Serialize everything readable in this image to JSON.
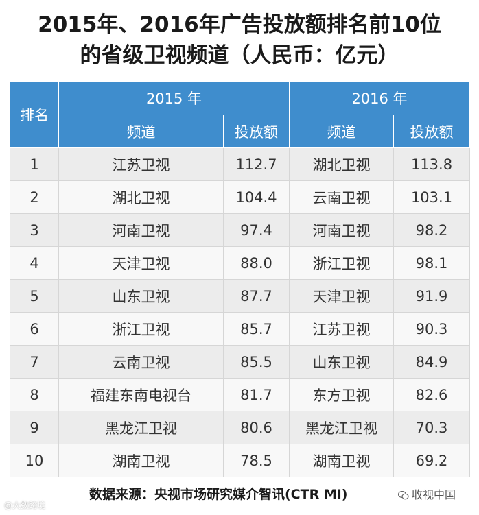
{
  "title": {
    "line1": "2015年、2016年广告投放额排名前10位",
    "line2": "的省级卫视频道（人民币：亿元）"
  },
  "chart_data": {
    "type": "table",
    "rank_header": "排名",
    "year_headers": [
      "2015 年",
      "2016 年"
    ],
    "column_headers": [
      "频道",
      "投放额",
      "频道",
      "投放额"
    ],
    "rows": [
      {
        "rank": "1",
        "ch2015": "江苏卫视",
        "amt2015": "112.7",
        "ch2016": "湖北卫视",
        "amt2016": "113.8"
      },
      {
        "rank": "2",
        "ch2015": "湖北卫视",
        "amt2015": "104.4",
        "ch2016": "云南卫视",
        "amt2016": "103.1"
      },
      {
        "rank": "3",
        "ch2015": "河南卫视",
        "amt2015": "97.4",
        "ch2016": "河南卫视",
        "amt2016": "98.2"
      },
      {
        "rank": "4",
        "ch2015": "天津卫视",
        "amt2015": "88.0",
        "ch2016": "浙江卫视",
        "amt2016": "98.1"
      },
      {
        "rank": "5",
        "ch2015": "山东卫视",
        "amt2015": "87.7",
        "ch2016": "天津卫视",
        "amt2016": "91.9"
      },
      {
        "rank": "6",
        "ch2015": "浙江卫视",
        "amt2015": "85.7",
        "ch2016": "江苏卫视",
        "amt2016": "90.3"
      },
      {
        "rank": "7",
        "ch2015": "云南卫视",
        "amt2015": "85.5",
        "ch2016": "山东卫视",
        "amt2016": "84.9"
      },
      {
        "rank": "8",
        "ch2015": "福建东南电视台",
        "amt2015": "81.7",
        "ch2016": "东方卫视",
        "amt2016": "82.6"
      },
      {
        "rank": "9",
        "ch2015": "黑龙江卫视",
        "amt2015": "80.6",
        "ch2016": "黑龙江卫视",
        "amt2016": "70.3"
      },
      {
        "rank": "10",
        "ch2015": "湖南卫视",
        "amt2015": "78.5",
        "ch2016": "湖南卫视",
        "amt2016": "69.2"
      }
    ]
  },
  "footer": {
    "source": "数据来源：央视市场研究媒介智讯(CTR MI)",
    "watermark_left": "@大数跨境",
    "watermark_right": "收视中国"
  },
  "colors": {
    "header_bg": "#3f8dcd",
    "row_odd": "#ececec",
    "row_even": "#f8f8f8"
  }
}
